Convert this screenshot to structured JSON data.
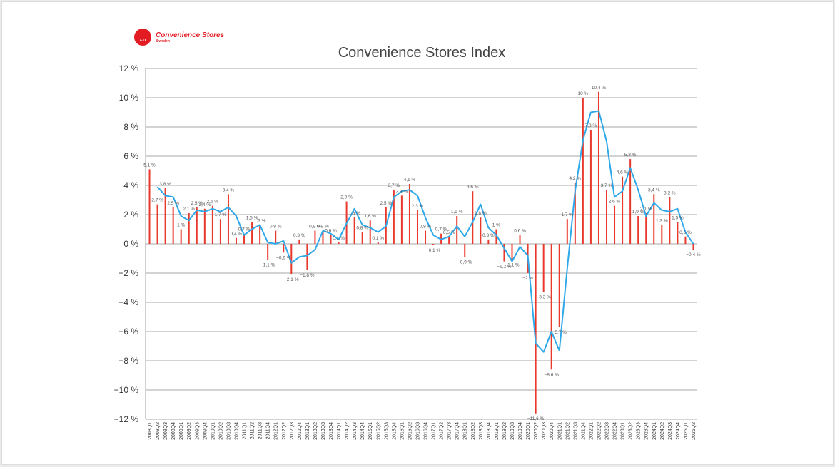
{
  "logo": {
    "name": "Convenience Stores",
    "sub": "Sweden",
    "mark": "7-11"
  },
  "colors": {
    "bar": "#e8392c",
    "line": "#2fa8ea",
    "grid": "#8a8a8a",
    "text": "#333333",
    "label": "#555555"
  },
  "chart_data": {
    "type": "bar",
    "title": "Convenience Stores Index",
    "xlabel": "",
    "ylabel": "",
    "ylim": [
      -12,
      12
    ],
    "y_ticks": [
      "12 %",
      "10 %",
      "8 %",
      "6 %",
      "4 %",
      "2 %",
      "0 %",
      "−2 %",
      "−4 %",
      "−6 %",
      "−8 %",
      "−10 %",
      "−12 %"
    ],
    "grid": true,
    "categories": [
      "2008Q1",
      "2008Q2",
      "2008Q3",
      "2008Q4",
      "2009Q1",
      "2009Q2",
      "2009Q3",
      "2009Q4",
      "2010Q1",
      "2010Q2",
      "2010Q3",
      "2010Q4",
      "2011Q1",
      "2011Q2",
      "2011Q3",
      "2011Q4",
      "2012Q1",
      "2012Q2",
      "2012Q3",
      "2012Q4",
      "2013Q1",
      "2013Q2",
      "2013Q3",
      "2013Q4",
      "2014Q1",
      "2014Q2",
      "2014Q3",
      "2014Q4",
      "2015Q1",
      "2015Q2",
      "2015Q3",
      "2015Q4",
      "2016Q1",
      "2016Q2",
      "2016Q3",
      "2016Q4",
      "2017Q1",
      "2017Q2",
      "2017Q3",
      "2017Q4",
      "2018Q1",
      "2018Q2",
      "2018Q3",
      "2018Q4",
      "2019Q1",
      "2019Q2",
      "2019Q3",
      "2019Q4",
      "2020Q1",
      "2020Q2",
      "2020Q3",
      "2020Q4",
      "2021Q1",
      "2021Q2",
      "2021Q3",
      "2021Q4",
      "2022Q1",
      "2022Q2",
      "2022Q3",
      "2022Q4",
      "2023Q1",
      "2023Q2",
      "2023Q3",
      "2023Q4",
      "2024Q1",
      "2024Q2",
      "2024Q3",
      "2024Q4",
      "2025Q1",
      "2025Q2"
    ],
    "series": [
      {
        "type": "bar",
        "values": [
          5.1,
          2.7,
          3.8,
          2.5,
          1.0,
          2.1,
          2.5,
          2.4,
          2.6,
          1.7,
          3.4,
          0.4,
          0.7,
          1.5,
          1.3,
          -1.1,
          0.9,
          -0.6,
          -2.1,
          0.3,
          -1.8,
          0.9,
          0.9,
          0.6,
          0.1,
          2.9,
          1.8,
          0.8,
          1.6,
          0.1,
          2.5,
          3.7,
          3.3,
          4.1,
          2.3,
          0.9,
          -0.1,
          0.7,
          0.5,
          1.9,
          -0.9,
          3.6,
          1.8,
          0.3,
          1.0,
          -1.2,
          -1.1,
          0.6,
          -2.0,
          -11.6,
          -3.3,
          -8.6,
          -5.7,
          1.7,
          4.2,
          10.0,
          7.8,
          10.4,
          3.7,
          2.6,
          4.6,
          5.8,
          1.9,
          2.1,
          3.4,
          1.3,
          3.2,
          1.5,
          0.5,
          -0.4
        ],
        "labels": [
          "5,1 %",
          "2,7 %",
          "3,8 %",
          "2,5 %",
          "1 %",
          "2,1 %",
          "2,5 %",
          "2,4 %",
          "2,6 %",
          "1,7 %",
          "3,4 %",
          "0,4 %",
          "0,7 %",
          "1,5 %",
          "1,3 %",
          "−1,1 %",
          "0,9 %",
          "−0,6 %",
          "−2,1 %",
          "0,3 %",
          "−1,8 %",
          "0,9 %",
          "0,9 %",
          "0,6 %",
          "0,1 %",
          "2,9 %",
          "1,8 %",
          "0,8 %",
          "1,6 %",
          "0,1 %",
          "2,5 %",
          "3,7 %",
          "3,3 %",
          "4,1 %",
          "2,3 %",
          "0,9 %",
          "−0,1 %",
          "0,7 %",
          "0,5 %",
          "1,9 %",
          "−0,9 %",
          "3,6 %",
          "1,8 %",
          "0,3 %",
          "1 %",
          "−1,2 %",
          "−1,1 %",
          "0,6 %",
          "−2 %",
          "−11,6 %",
          "−3,3 %",
          "−8,6 %",
          "−5,7 %",
          "1,7 %",
          "4,2 %",
          "10 %",
          "7,8 %",
          "10,4 %",
          "3,7 %",
          "2,6 %",
          "4,6 %",
          "5,8 %",
          "1,9 %",
          "2,1 %",
          "3,4 %",
          "1,3 %",
          "3,2 %",
          "1,5 %",
          "0,5 %",
          "−0,4 %"
        ]
      },
      {
        "type": "line",
        "values": [
          null,
          3.9,
          3.3,
          3.2,
          1.9,
          1.6,
          2.3,
          2.2,
          2.4,
          2.2,
          2.5,
          1.9,
          0.6,
          1.0,
          1.3,
          0.1,
          0.0,
          0.2,
          -1.3,
          -0.9,
          -0.8,
          -0.4,
          0.9,
          0.7,
          0.3,
          1.4,
          2.4,
          1.3,
          1.1,
          0.8,
          1.2,
          3.2,
          3.6,
          3.7,
          3.3,
          1.8,
          0.6,
          0.3,
          0.5,
          1.2,
          0.5,
          1.5,
          2.7,
          1.1,
          0.6,
          -0.3,
          -1.2,
          -0.2,
          -0.8,
          -6.8,
          -7.4,
          -6.0,
          -7.3,
          -1.7,
          3.6,
          7.1,
          9.0,
          9.1,
          7.0,
          3.2,
          3.6,
          5.2,
          3.7,
          1.9,
          2.8,
          2.3,
          2.2,
          2.4,
          0.8,
          0.0
        ]
      }
    ]
  }
}
